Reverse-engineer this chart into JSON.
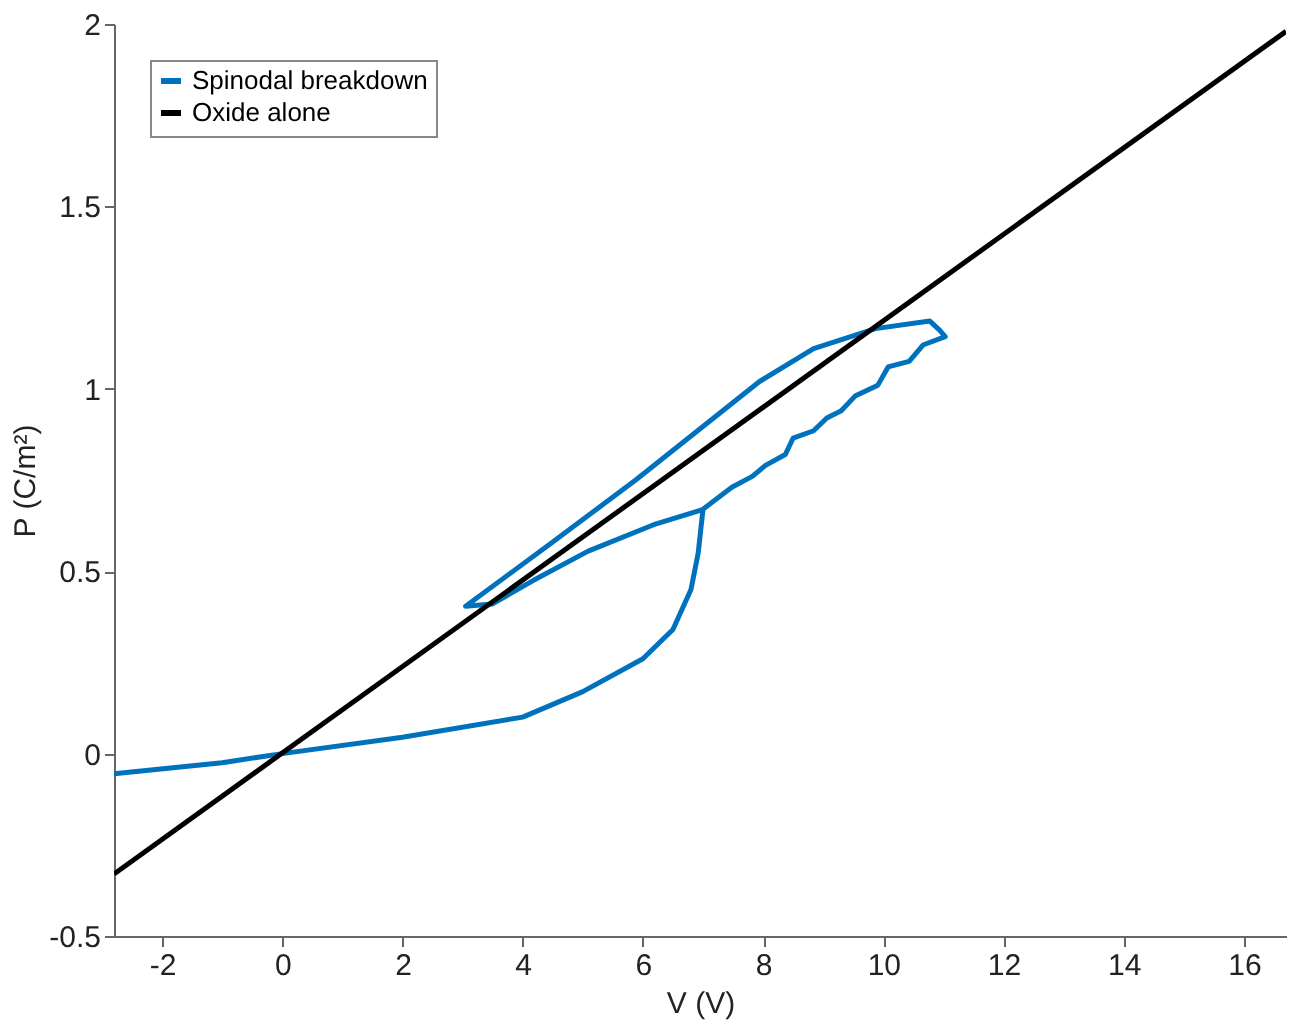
{
  "chart_data": {
    "type": "line",
    "xlabel": "V (V)",
    "ylabel": "P (C/m²)",
    "xlim": [
      -2.8,
      16.7
    ],
    "ylim": [
      -0.5,
      2
    ],
    "xticks": [
      -2,
      0,
      2,
      4,
      6,
      8,
      10,
      12,
      14,
      16
    ],
    "yticks": [
      -0.5,
      0,
      0.5,
      1,
      1.5,
      2
    ],
    "grid": false,
    "legend": "top left",
    "marker": "none",
    "line_style": "solid",
    "series": [
      {
        "name": "Spinodal breakdown",
        "color": "#0072bd",
        "x": [
          -2.8,
          -1,
          0,
          2,
          4,
          5,
          6,
          6.5,
          6.8,
          6.92,
          7.0,
          7.48,
          7.82,
          8.04,
          8.37,
          8.5,
          8.84,
          9.06,
          9.3,
          9.53,
          9.91,
          10.08,
          10.43,
          10.66,
          11.03,
          10.94,
          10.77,
          9.87,
          8.84,
          7.94,
          5.88,
          4.5,
          3.05,
          3.49,
          4.18,
          5.09,
          6.22,
          7.02
        ],
        "values": [
          -0.055,
          -0.025,
          0,
          0.045,
          0.1,
          0.17,
          0.26,
          0.34,
          0.45,
          0.55,
          0.67,
          0.73,
          0.76,
          0.79,
          0.82,
          0.865,
          0.885,
          0.92,
          0.94,
          0.98,
          1.01,
          1.06,
          1.075,
          1.12,
          1.143,
          1.16,
          1.186,
          1.165,
          1.11,
          1.02,
          0.75,
          0.58,
          0.404,
          0.41,
          0.475,
          0.555,
          0.63,
          0.67
        ]
      },
      {
        "name": "Oxide alone",
        "color": "#000000",
        "x": [
          -2.8,
          16.7
        ],
        "values": [
          -0.33,
          1.98
        ]
      }
    ]
  }
}
